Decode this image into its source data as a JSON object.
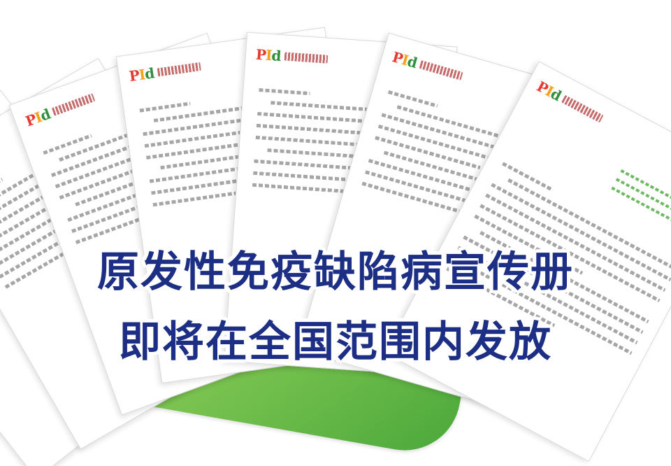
{
  "headline": {
    "line1": "原发性免疫缺陷病宣传册",
    "line2": "即将在全国范围内发放"
  },
  "brochure": {
    "logo_text": [
      "P",
      "I",
      "d"
    ],
    "colors": {
      "title_text": "#1d2f85",
      "title_outline": "#ffffff",
      "logo_p": "#e53a2f",
      "logo_i": "#f3a21a",
      "logo_d": "#2f8f3a",
      "cover_green": "#4aa83a"
    }
  }
}
